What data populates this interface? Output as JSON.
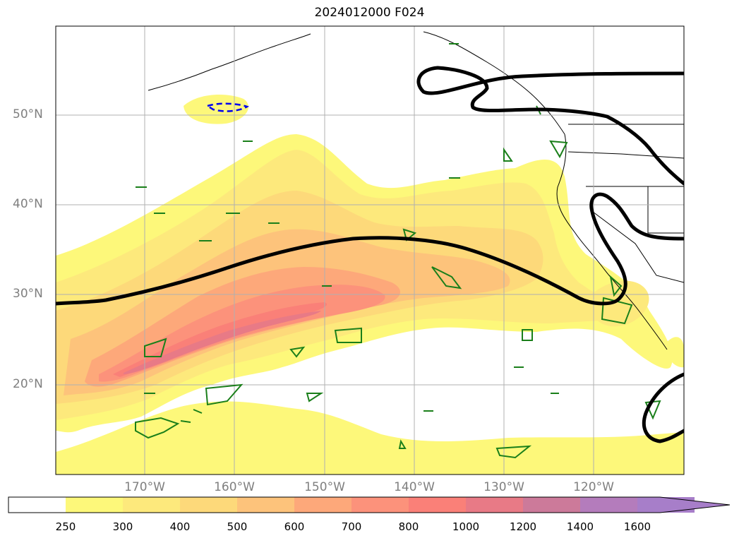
{
  "title": "2024012000 F024",
  "lat_labels": [
    "50°N",
    "40°N",
    "30°N",
    "20°N"
  ],
  "lon_labels": [
    "170°W",
    "160°W",
    "150°W",
    "140°W",
    "130°W",
    "120°W"
  ],
  "colorbar": {
    "ticks": [
      "250",
      "300",
      "400",
      "500",
      "600",
      "700",
      "800",
      "1000",
      "1200",
      "1400",
      "1600"
    ],
    "colors": [
      "#ffffff",
      "#fdf87a",
      "#fde97c",
      "#fdd97a",
      "#fdc37b",
      "#fda87a",
      "#fc927b",
      "#fa8078",
      "#e87a86",
      "#cc7a9a",
      "#b47cbc",
      "#a77ec9"
    ]
  },
  "legend_colors": {
    "jet_contour": "#000000",
    "green_contour": "#1a7f1a",
    "blue_dashed_contour": "#0000ee",
    "grid": "#b0b0b0"
  }
}
